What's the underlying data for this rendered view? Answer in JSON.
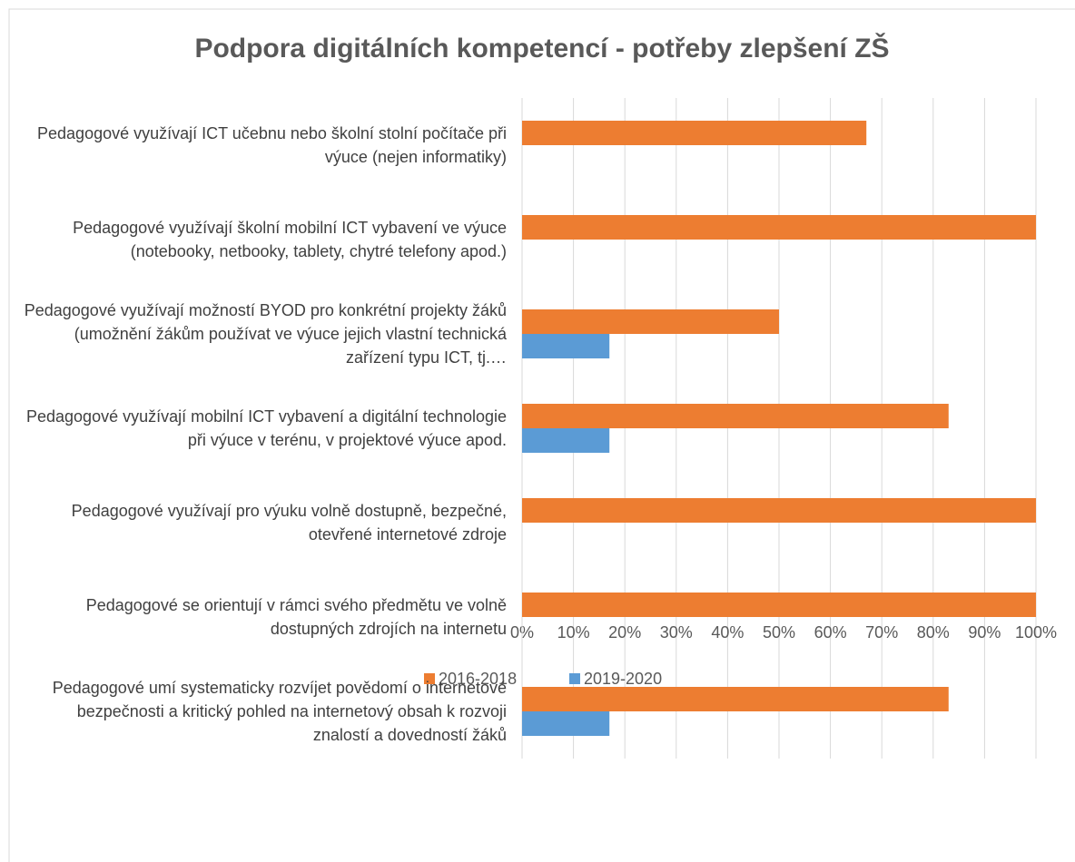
{
  "chart_data": {
    "type": "bar",
    "orientation": "horizontal",
    "title": "Podpora digitálních kompetencí - potřeby zlepšení ZŠ",
    "categories": [
      "Pedagogové využívají ICT učebnu nebo školní stolní počítače při výuce (nejen informatiky)",
      "Pedagogové využívají školní mobilní ICT vybavení ve výuce (notebooky, netbooky, tablety, chytré telefony apod.)",
      "Pedagogové využívají možností BYOD pro konkrétní projekty žáků (umožnění žákům používat ve výuce jejich vlastní technická zařízení typu ICT, tj.…",
      "Pedagogové využívají mobilní ICT vybavení a digitální technologie při výuce v terénu, v projektové výuce apod.",
      "Pedagogové využívají pro výuku volně dostupně, bezpečné, otevřené internetové zdroje",
      "Pedagogové se orientují v rámci svého předmětu ve volně dostupných zdrojích na internetu",
      "Pedagogové umí systematicky rozvíjet povědomí o internetové bezpečnosti a kritický pohled na internetový obsah k rozvoji znalostí a dovedností žáků"
    ],
    "series": [
      {
        "name": "2016-2018",
        "color": "#ed7d31",
        "values": [
          67,
          100,
          50,
          83,
          100,
          100,
          83
        ]
      },
      {
        "name": "2019-2020",
        "color": "#5b9bd5",
        "values": [
          0,
          0,
          17,
          17,
          0,
          0,
          17
        ]
      }
    ],
    "xlim": [
      0,
      100
    ],
    "xticks": [
      {
        "value": 0,
        "label": "0%"
      },
      {
        "value": 10,
        "label": "10%"
      },
      {
        "value": 20,
        "label": "20%"
      },
      {
        "value": 30,
        "label": "30%"
      },
      {
        "value": 40,
        "label": "40%"
      },
      {
        "value": 50,
        "label": "50%"
      },
      {
        "value": 60,
        "label": "60%"
      },
      {
        "value": 70,
        "label": "70%"
      },
      {
        "value": 80,
        "label": "80%"
      },
      {
        "value": 90,
        "label": "90%"
      },
      {
        "value": 100,
        "label": "100%"
      }
    ],
    "grid": true,
    "legend": "bottom"
  }
}
